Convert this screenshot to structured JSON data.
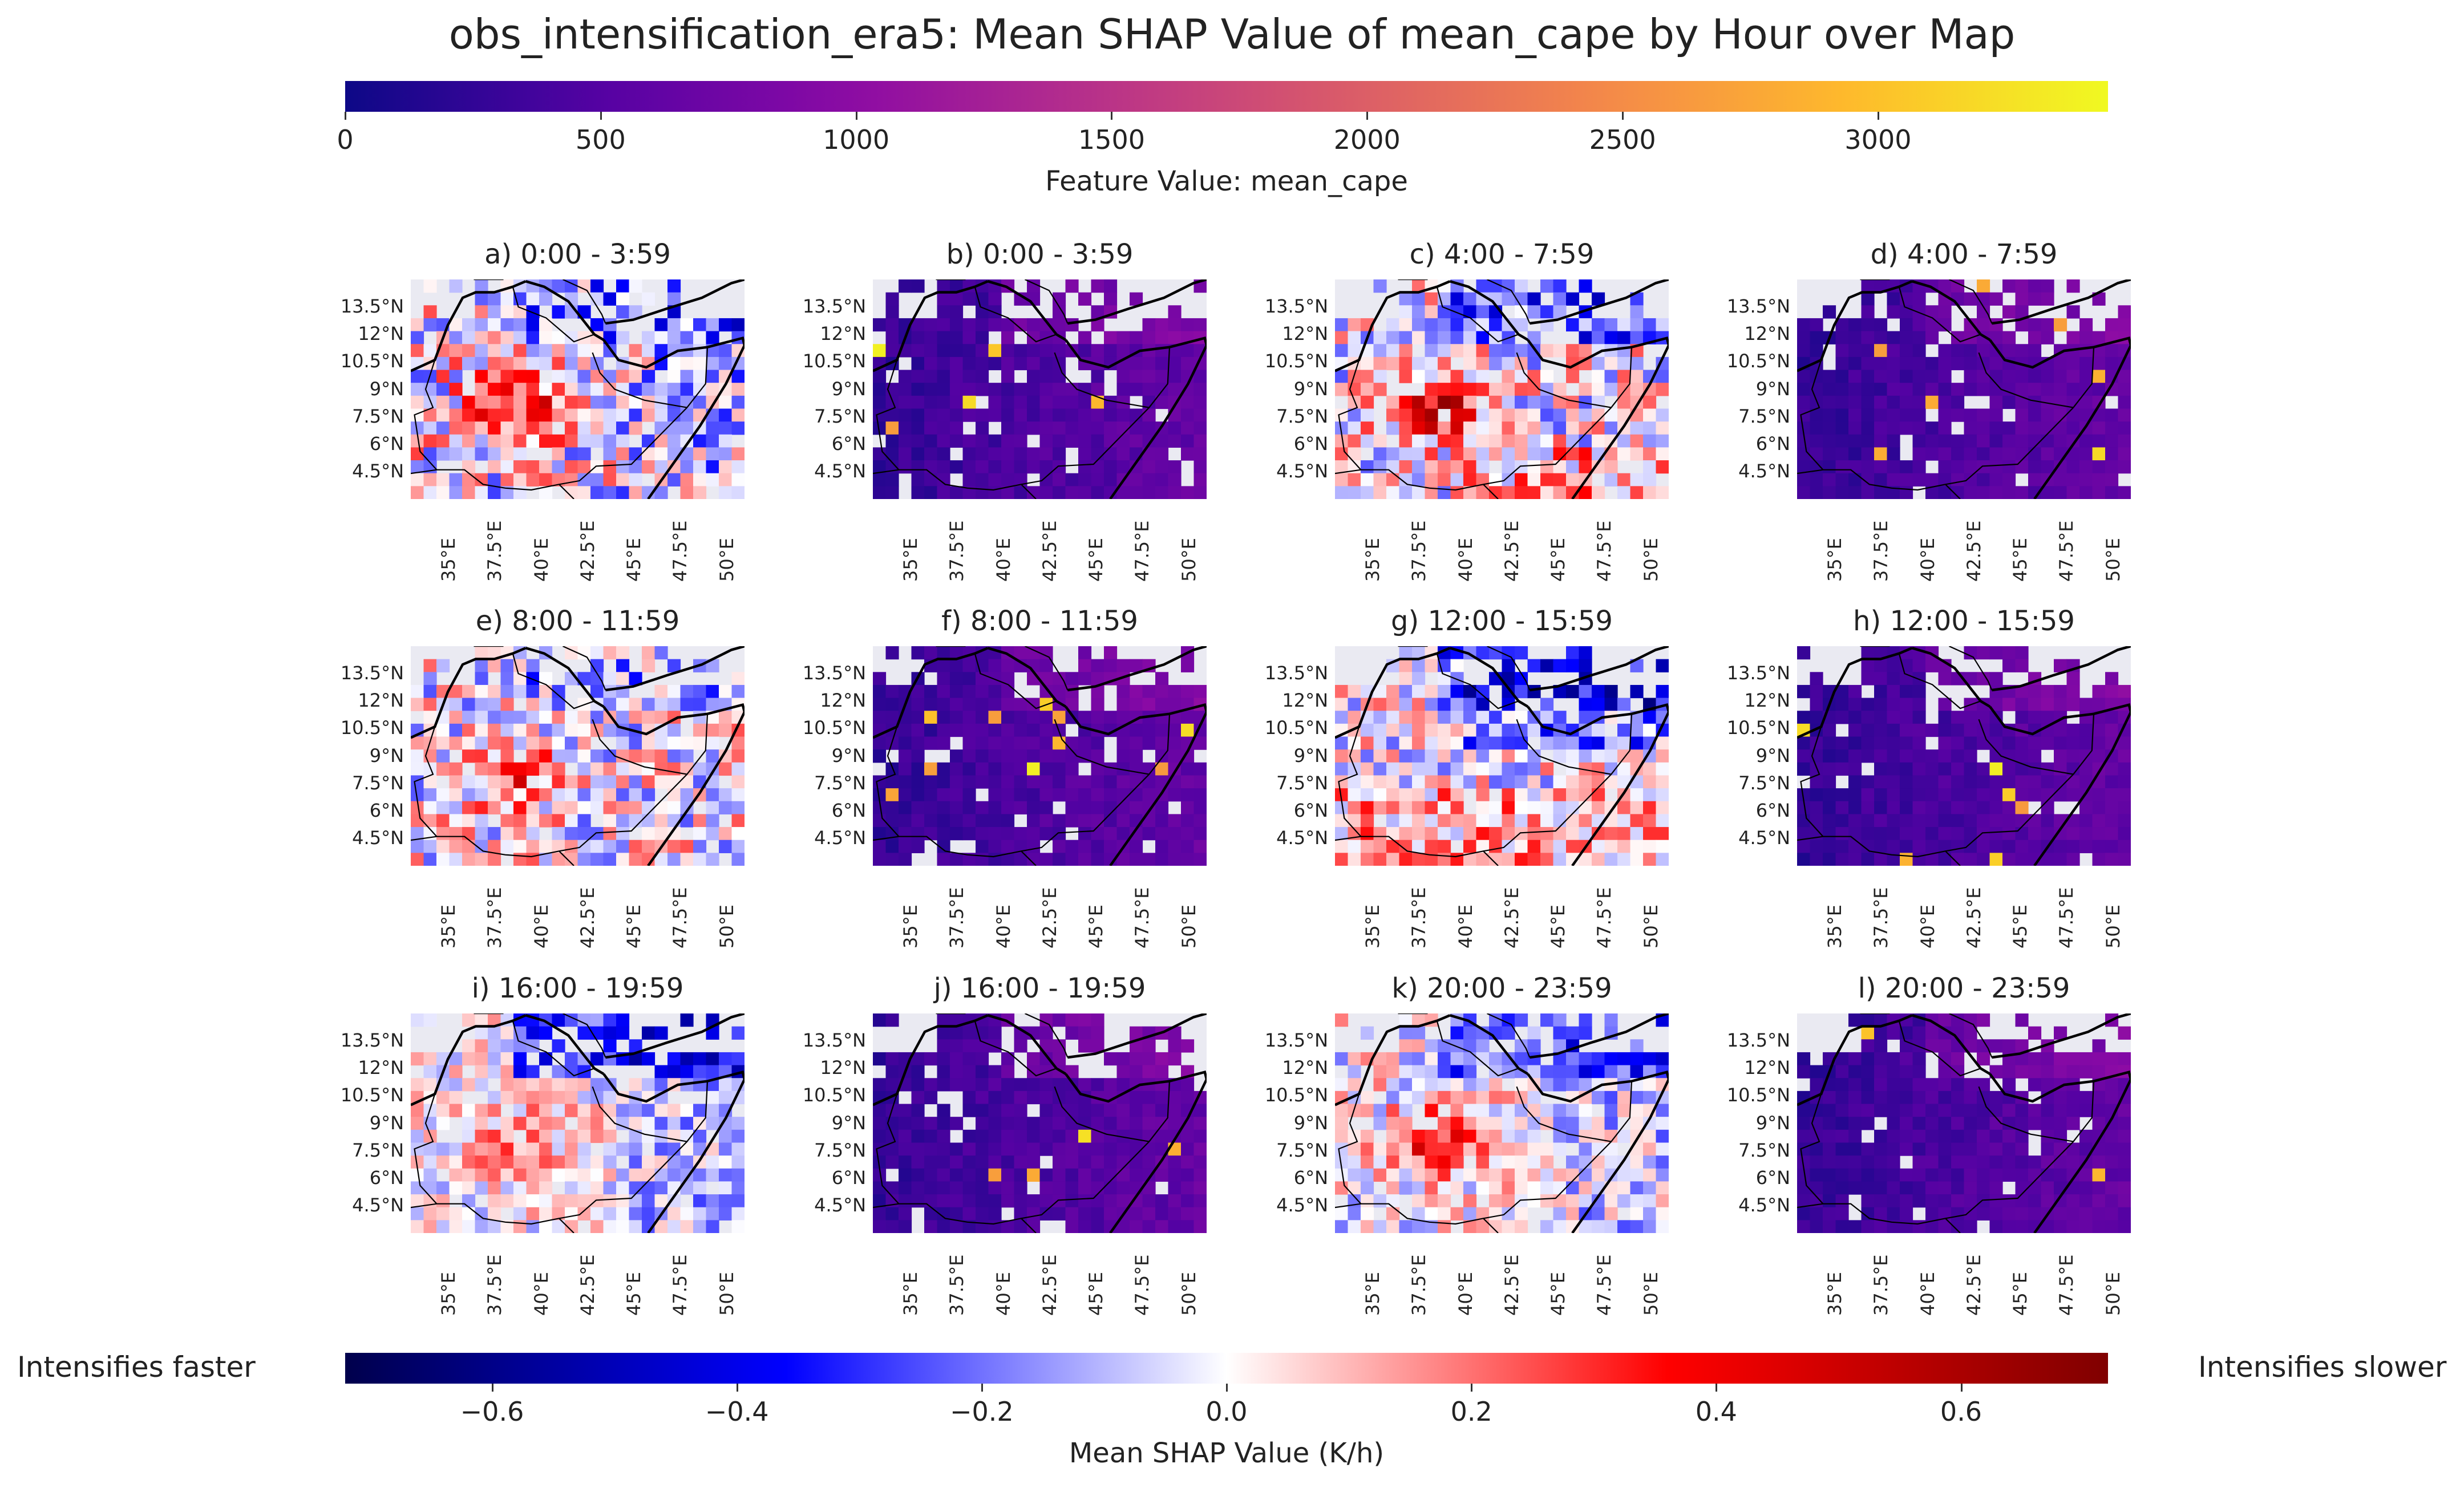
{
  "title": "obs_intensification_era5: Mean SHAP Value of mean_cape by Hour over Map",
  "top_colorbar": {
    "colormap": "plasma",
    "min": 0,
    "max": 3450,
    "ticks": [
      "0",
      "500",
      "1000",
      "1500",
      "2000",
      "2500",
      "3000"
    ],
    "tick_values": [
      0,
      500,
      1000,
      1500,
      2000,
      2500,
      3000
    ],
    "label": "Feature Value: mean_cape"
  },
  "bottom_colorbar": {
    "colormap": "seismic",
    "min": -0.72,
    "max": 0.72,
    "ticks": [
      "−0.6",
      "−0.4",
      "−0.2",
      "0.0",
      "0.2",
      "0.4",
      "0.6"
    ],
    "tick_values": [
      -0.6,
      -0.4,
      -0.2,
      0.0,
      0.2,
      0.4,
      0.6
    ],
    "label": "Mean SHAP Value (K/h)",
    "left_label": "Intensifies faster",
    "right_label": "Intensifies slower"
  },
  "lat_ticks": [
    "13.5°N",
    "12°N",
    "10.5°N",
    "9°N",
    "7.5°N",
    "6°N",
    "4.5°N"
  ],
  "lat_values": [
    13.5,
    12,
    10.5,
    9,
    7.5,
    6,
    4.5
  ],
  "lon_ticks": [
    "35°E",
    "37.5°E",
    "40°E",
    "42.5°E",
    "45°E",
    "47.5°E",
    "50°E"
  ],
  "lon_values": [
    35,
    37.5,
    40,
    42.5,
    45,
    47.5,
    50
  ],
  "map_extent": {
    "lon": [
      33.0,
      51.0
    ],
    "lat": [
      3.0,
      15.0
    ]
  },
  "colors": {
    "land_background": "#eaeaf2",
    "border": "#000000"
  },
  "panels": [
    {
      "title": "a) 0:00 - 3:59",
      "kind": "shap"
    },
    {
      "title": "b) 0:00 - 3:59",
      "kind": "cape"
    },
    {
      "title": "c) 4:00 - 7:59",
      "kind": "shap"
    },
    {
      "title": "d) 4:00 - 7:59",
      "kind": "cape"
    },
    {
      "title": "e) 8:00 - 11:59",
      "kind": "shap"
    },
    {
      "title": "f) 8:00 - 11:59",
      "kind": "cape"
    },
    {
      "title": "g) 12:00 - 15:59",
      "kind": "shap"
    },
    {
      "title": "h) 12:00 - 15:59",
      "kind": "cape"
    },
    {
      "title": "i) 16:00 - 19:59",
      "kind": "shap"
    },
    {
      "title": "j) 16:00 - 19:59",
      "kind": "cape"
    },
    {
      "title": "k) 20:00 - 23:59",
      "kind": "shap"
    },
    {
      "title": "l) 20:00 - 23:59",
      "kind": "cape"
    }
  ]
}
